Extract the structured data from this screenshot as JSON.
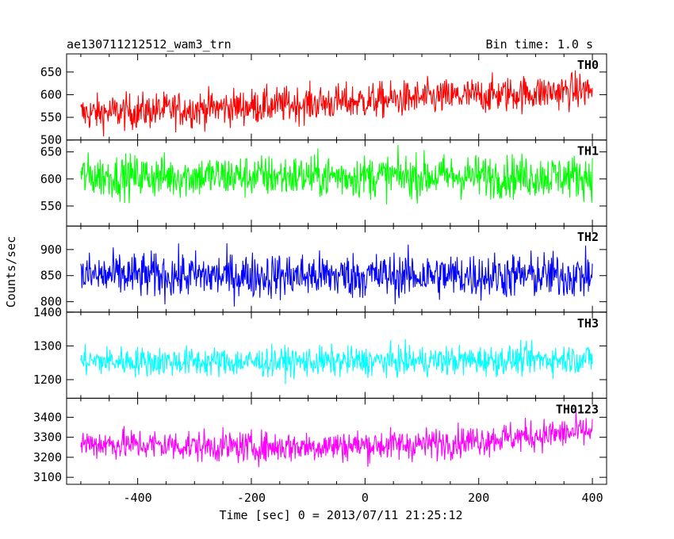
{
  "header": {
    "title": "ae130711212512_wam3_trn",
    "bin_time": "Bin time: 1.0 s"
  },
  "axes": {
    "xlabel": "Time [sec] 0 = 2013/07/11 21:25:12",
    "ylabel": "Counts/sec"
  },
  "chart_data": {
    "type": "line",
    "title": "ae130711212512_wam3_trn",
    "subtitle": "Bin time: 1.0 s",
    "xlabel": "Time [sec] 0 = 2013/07/11 21:25:12",
    "ylabel": "Counts/sec",
    "x_range": [
      -500,
      400
    ],
    "xlim": [
      -525,
      425
    ],
    "x_ticks": [
      -400,
      -200,
      0,
      200,
      400
    ],
    "grid": false,
    "legend": "none",
    "series": [
      {
        "name": "TH0",
        "color": "#ff0000",
        "ylim": [
          500,
          690
        ],
        "y_ticks": [
          500,
          550,
          600,
          650
        ],
        "mean": [
          558,
          574,
          592,
          610
        ],
        "amplitude": 38
      },
      {
        "name": "TH1",
        "color": "#00ff00",
        "ylim": [
          513,
          672
        ],
        "y_ticks": [
          550,
          600,
          650
        ],
        "mean": [
          605,
          605,
          605,
          605
        ],
        "amplitude": 38
      },
      {
        "name": "TH2",
        "color": "#0000ff",
        "ylim": [
          780,
          945
        ],
        "y_ticks": [
          800,
          850,
          900
        ],
        "mean": [
          850,
          850,
          850,
          850
        ],
        "amplitude": 42
      },
      {
        "name": "TH3",
        "color": "#00ffff",
        "ylim": [
          1145,
          1400
        ],
        "y_ticks": [
          1200,
          1300,
          1400
        ],
        "mean": [
          1255,
          1252,
          1255,
          1262
        ],
        "amplitude": 42
      },
      {
        "name": "TH0123",
        "color": "#ff00ff",
        "ylim": [
          3065,
          3495
        ],
        "y_ticks": [
          3100,
          3200,
          3300,
          3400
        ],
        "mean": [
          3270,
          3250,
          3265,
          3330
        ],
        "amplitude": 75
      }
    ]
  }
}
